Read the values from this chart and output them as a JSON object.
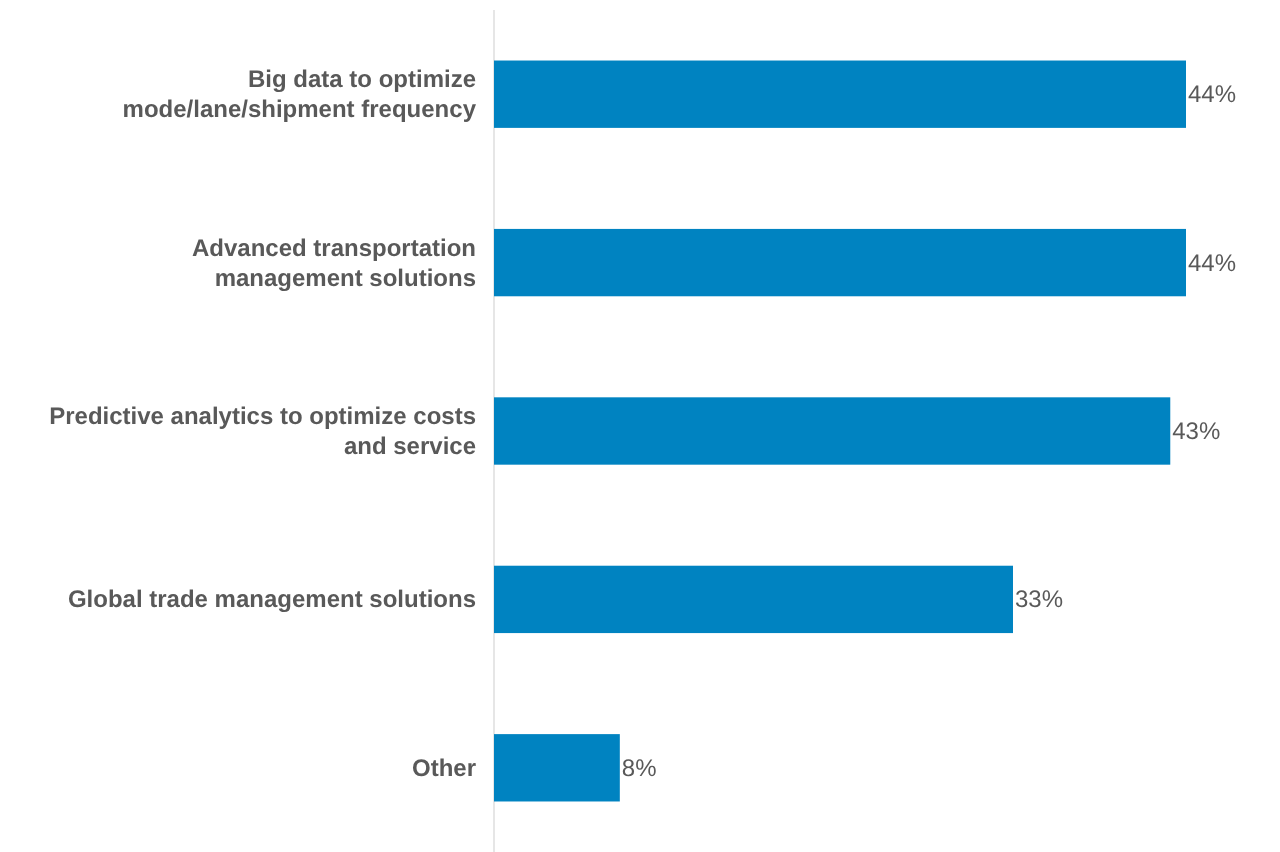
{
  "chart_data": {
    "type": "bar",
    "orientation": "horizontal",
    "categories": [
      "Big data to optimize mode/lane/shipment frequency",
      "Advanced transportation management solutions",
      "Predictive analytics to optimize costs and service",
      "Global trade management solutions",
      "Other"
    ],
    "values": [
      44,
      44,
      43,
      33,
      8
    ],
    "value_labels": [
      "44%",
      "44%",
      "43%",
      "33%",
      "8%"
    ],
    "color": "#0083c1",
    "tick_labels": "y"
  }
}
